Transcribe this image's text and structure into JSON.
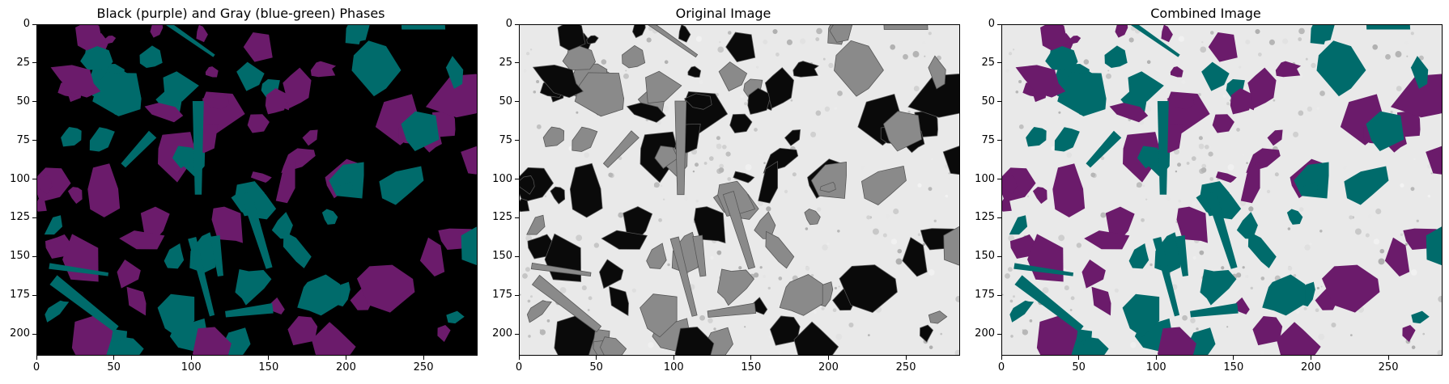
{
  "figure": {
    "panels": [
      {
        "id": "phases",
        "title": "Black (purple) and Gray (blue-green) Phases",
        "variant": "phases",
        "background": "#000000",
        "phase_colors": {
          "black_phase": "#6b1b6b",
          "gray_phase": "#006b6b"
        }
      },
      {
        "id": "original",
        "title": "Original Image",
        "variant": "original",
        "background": "#e9e9e9",
        "phase_colors": {
          "black_phase": "#0a0a0a",
          "gray_phase": "#8a8a8a"
        }
      },
      {
        "id": "combined",
        "title": "Combined Image",
        "variant": "combined",
        "background": "#e9e9e9",
        "phase_colors": {
          "black_phase": "#6b1b6b",
          "gray_phase": "#006b6b"
        }
      }
    ],
    "x_ticks": [
      0,
      50,
      100,
      150,
      200,
      250
    ],
    "y_ticks": [
      0,
      25,
      50,
      75,
      100,
      125,
      150,
      175,
      200
    ],
    "x_range": [
      0,
      285
    ],
    "y_range": [
      0,
      214
    ]
  }
}
